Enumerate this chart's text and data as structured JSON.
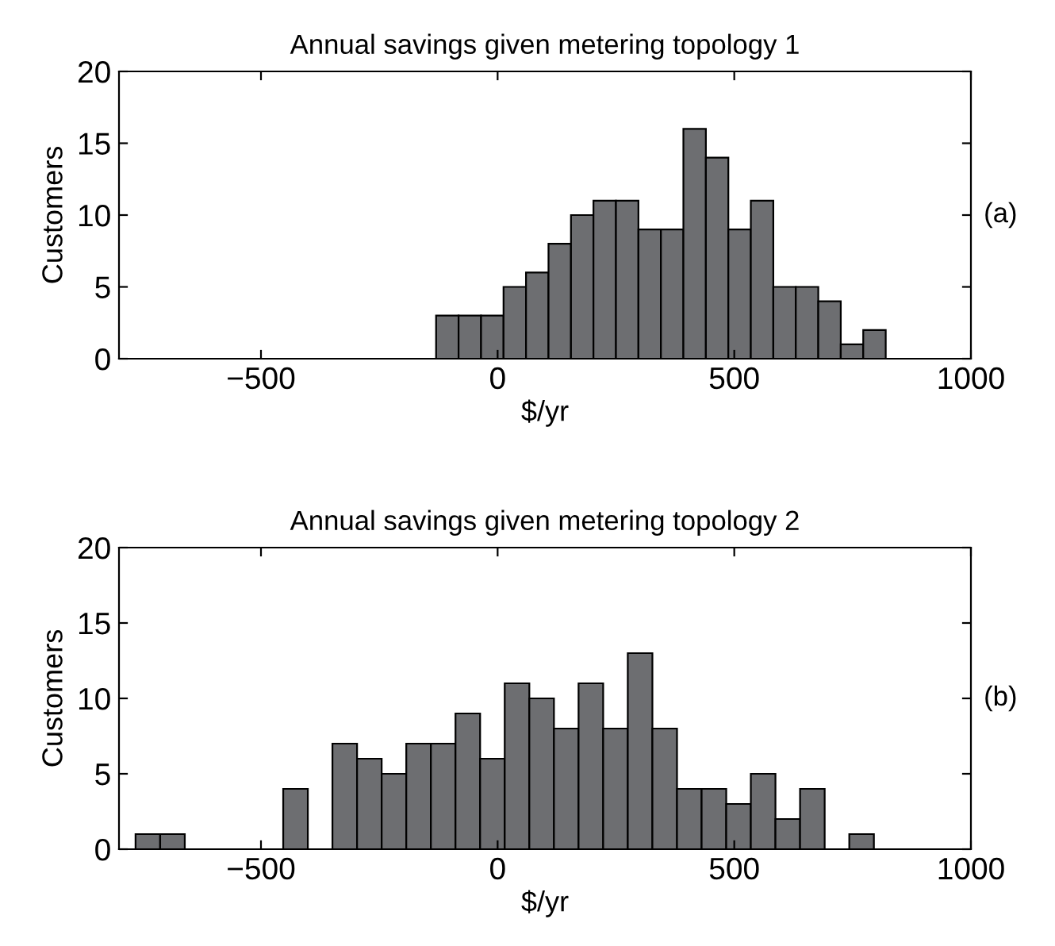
{
  "chart_data": [
    {
      "type": "histogram",
      "title": "Annual savings given metering topology 1",
      "xlabel": "$/yr",
      "ylabel": "Customers",
      "annotations": [
        "(a)"
      ],
      "color": "#6d6e71",
      "bins": [
        -130,
        -82.5,
        -35,
        12.5,
        60,
        107.5,
        155,
        202.5,
        250,
        297.5,
        345,
        392.5,
        440,
        487.5,
        535,
        582.5,
        630,
        677.5,
        725,
        772.5,
        820
      ],
      "values": [
        3,
        3,
        3,
        5,
        6,
        8,
        10,
        11,
        11,
        9,
        9,
        16,
        14,
        9,
        11,
        5,
        5,
        4,
        1,
        2
      ],
      "xlim": [
        -800,
        1000
      ],
      "xticks": [
        {
          "value": -500,
          "label": "−500"
        },
        0,
        500,
        1000
      ],
      "ylim": [
        0,
        20
      ],
      "yticks": [
        0,
        5,
        10,
        15,
        20
      ],
      "grid": false
    },
    {
      "type": "histogram",
      "title": "Annual savings given metering topology 2",
      "xlabel": "$/yr",
      "ylabel": "Customers",
      "annotations": [
        "(b)"
      ],
      "color": "#6d6e71",
      "bins": [
        -765,
        -713,
        -661,
        -609,
        -557,
        -505,
        -453,
        -401,
        -349,
        -297,
        -245,
        -193,
        -141,
        -89,
        -37,
        15,
        67,
        119,
        171,
        223,
        275,
        327,
        379,
        431,
        483,
        535,
        587,
        639,
        691,
        743,
        795
      ],
      "values": [
        1,
        1,
        0,
        0,
        0,
        0,
        4,
        0,
        7,
        6,
        5,
        7,
        7,
        9,
        6,
        11,
        10,
        8,
        11,
        8,
        13,
        8,
        4,
        4,
        3,
        5,
        2,
        4,
        0,
        1
      ],
      "xlim": [
        -800,
        1000
      ],
      "xticks": [
        {
          "value": -500,
          "label": "−500"
        },
        0,
        500,
        1000
      ],
      "ylim": [
        0,
        20
      ],
      "yticks": [
        0,
        5,
        10,
        15,
        20
      ],
      "grid": false
    }
  ]
}
